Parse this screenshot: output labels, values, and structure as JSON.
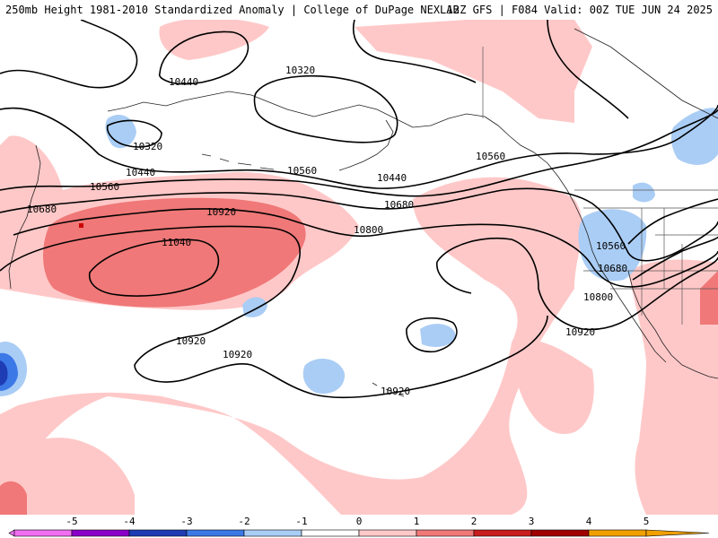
{
  "header": {
    "left_title": "250mb Height 1981-2010 Standardized Anomaly | College of DuPage NEXLAB",
    "right_title": "12Z GFS | F084 Valid: 00Z TUE JUN 24 2025"
  },
  "contour_labels": [
    {
      "id": "c1",
      "text": "10440"
    },
    {
      "id": "c2",
      "text": "10320"
    },
    {
      "id": "c3",
      "text": "10320"
    },
    {
      "id": "c4",
      "text": "10440"
    },
    {
      "id": "c5",
      "text": "10560"
    },
    {
      "id": "c6",
      "text": "10560"
    },
    {
      "id": "c7",
      "text": "10440"
    },
    {
      "id": "c8",
      "text": "10560"
    },
    {
      "id": "c9",
      "text": "10680"
    },
    {
      "id": "c10",
      "text": "10920"
    },
    {
      "id": "c11",
      "text": "10680"
    },
    {
      "id": "c12",
      "text": "10800"
    },
    {
      "id": "c13",
      "text": "11040"
    },
    {
      "id": "c14",
      "text": "10560"
    },
    {
      "id": "c15",
      "text": "10680"
    },
    {
      "id": "c16",
      "text": "10800"
    },
    {
      "id": "c17",
      "text": "10920"
    },
    {
      "id": "c18",
      "text": "10920"
    },
    {
      "id": "c19",
      "text": "10920"
    },
    {
      "id": "c20",
      "text": "10920"
    }
  ],
  "colorbar": {
    "ticks": [
      "-5",
      "-4",
      "-3",
      "-2",
      "-1",
      "0",
      "1",
      "2",
      "3",
      "4",
      "5"
    ],
    "colors": [
      "#f06ef0",
      "#8a00c8",
      "#1e3cb4",
      "#3c78e6",
      "#aacdf5",
      "#ffffff",
      "#ffc8c8",
      "#f07878",
      "#c81e1e",
      "#a00000",
      "#f0a000"
    ]
  }
}
